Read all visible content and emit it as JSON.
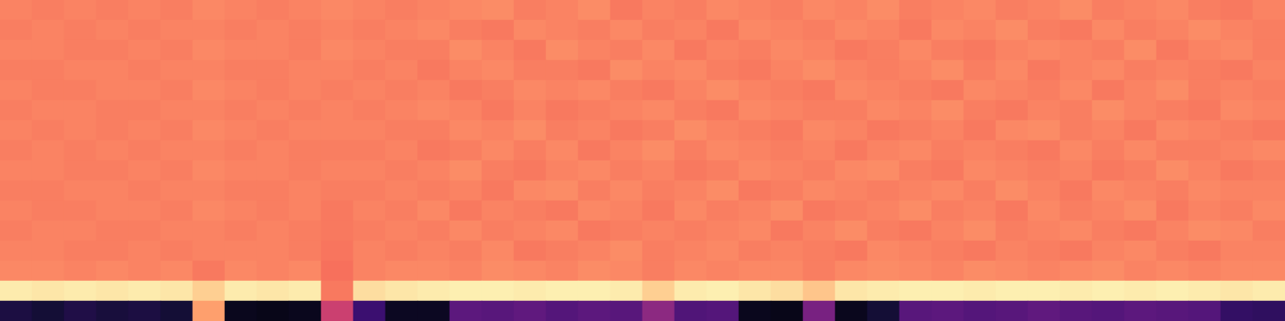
{
  "chart_data": {
    "type": "heatmap",
    "color": "magma",
    "tick_labels": false,
    "zlim": [
      0,
      1
    ],
    "cells": [
      [
        0.74,
        0.73,
        0.74,
        0.73,
        0.74,
        0.73,
        0.75,
        0.74,
        0.73,
        0.74,
        0.75,
        0.74,
        0.73,
        0.74,
        0.75,
        0.76,
        0.73,
        0.74,
        0.76,
        0.72,
        0.74,
        0.73,
        0.75,
        0.74,
        0.73,
        0.75,
        0.74,
        0.76,
        0.73,
        0.74,
        0.75,
        0.73,
        0.74,
        0.76,
        0.73,
        0.74,
        0.75,
        0.73,
        0.72,
        0.74
      ],
      [
        0.73,
        0.74,
        0.73,
        0.74,
        0.73,
        0.74,
        0.74,
        0.73,
        0.74,
        0.73,
        0.74,
        0.73,
        0.74,
        0.75,
        0.73,
        0.72,
        0.75,
        0.74,
        0.73,
        0.75,
        0.73,
        0.74,
        0.72,
        0.75,
        0.74,
        0.73,
        0.75,
        0.74,
        0.72,
        0.75,
        0.74,
        0.76,
        0.73,
        0.72,
        0.75,
        0.73,
        0.74,
        0.76,
        0.74,
        0.73
      ],
      [
        0.74,
        0.74,
        0.73,
        0.73,
        0.74,
        0.73,
        0.75,
        0.74,
        0.74,
        0.73,
        0.75,
        0.74,
        0.73,
        0.73,
        0.76,
        0.74,
        0.72,
        0.76,
        0.74,
        0.73,
        0.75,
        0.72,
        0.74,
        0.73,
        0.75,
        0.74,
        0.72,
        0.73,
        0.75,
        0.73,
        0.72,
        0.74,
        0.75,
        0.74,
        0.73,
        0.76,
        0.72,
        0.74,
        0.75,
        0.73
      ],
      [
        0.73,
        0.73,
        0.74,
        0.74,
        0.73,
        0.74,
        0.74,
        0.73,
        0.73,
        0.74,
        0.74,
        0.73,
        0.74,
        0.72,
        0.74,
        0.75,
        0.73,
        0.73,
        0.72,
        0.76,
        0.74,
        0.75,
        0.73,
        0.72,
        0.74,
        0.76,
        0.74,
        0.73,
        0.74,
        0.76,
        0.73,
        0.75,
        0.72,
        0.74,
        0.75,
        0.73,
        0.74,
        0.73,
        0.72,
        0.74
      ],
      [
        0.74,
        0.73,
        0.73,
        0.74,
        0.74,
        0.73,
        0.75,
        0.74,
        0.73,
        0.74,
        0.73,
        0.74,
        0.73,
        0.74,
        0.72,
        0.73,
        0.75,
        0.74,
        0.75,
        0.73,
        0.72,
        0.74,
        0.76,
        0.74,
        0.73,
        0.72,
        0.75,
        0.74,
        0.73,
        0.72,
        0.75,
        0.74,
        0.73,
        0.75,
        0.72,
        0.74,
        0.76,
        0.73,
        0.74,
        0.73
      ],
      [
        0.73,
        0.74,
        0.74,
        0.73,
        0.73,
        0.74,
        0.74,
        0.73,
        0.74,
        0.73,
        0.74,
        0.73,
        0.74,
        0.75,
        0.74,
        0.72,
        0.74,
        0.72,
        0.73,
        0.74,
        0.75,
        0.73,
        0.72,
        0.75,
        0.74,
        0.73,
        0.73,
        0.75,
        0.74,
        0.76,
        0.73,
        0.72,
        0.74,
        0.73,
        0.76,
        0.74,
        0.73,
        0.72,
        0.75,
        0.74
      ],
      [
        0.74,
        0.73,
        0.74,
        0.73,
        0.74,
        0.73,
        0.75,
        0.74,
        0.73,
        0.74,
        0.74,
        0.74,
        0.73,
        0.73,
        0.75,
        0.74,
        0.76,
        0.73,
        0.74,
        0.72,
        0.73,
        0.76,
        0.74,
        0.73,
        0.72,
        0.75,
        0.74,
        0.72,
        0.73,
        0.74,
        0.72,
        0.75,
        0.76,
        0.73,
        0.74,
        0.72,
        0.75,
        0.74,
        0.73,
        0.72
      ],
      [
        0.73,
        0.74,
        0.73,
        0.74,
        0.73,
        0.74,
        0.74,
        0.73,
        0.74,
        0.73,
        0.73,
        0.73,
        0.74,
        0.72,
        0.73,
        0.75,
        0.73,
        0.75,
        0.72,
        0.74,
        0.76,
        0.73,
        0.75,
        0.74,
        0.73,
        0.74,
        0.72,
        0.74,
        0.75,
        0.73,
        0.74,
        0.73,
        0.72,
        0.75,
        0.73,
        0.75,
        0.73,
        0.73,
        0.74,
        0.75
      ],
      [
        0.74,
        0.74,
        0.73,
        0.73,
        0.74,
        0.73,
        0.75,
        0.74,
        0.74,
        0.73,
        0.74,
        0.74,
        0.73,
        0.74,
        0.76,
        0.73,
        0.72,
        0.74,
        0.75,
        0.73,
        0.74,
        0.72,
        0.73,
        0.75,
        0.74,
        0.73,
        0.75,
        0.76,
        0.73,
        0.72,
        0.75,
        0.74,
        0.73,
        0.74,
        0.72,
        0.73,
        0.76,
        0.74,
        0.72,
        0.73
      ],
      [
        0.73,
        0.73,
        0.74,
        0.74,
        0.73,
        0.74,
        0.74,
        0.73,
        0.73,
        0.74,
        0.73,
        0.73,
        0.74,
        0.73,
        0.74,
        0.72,
        0.75,
        0.76,
        0.73,
        0.75,
        0.73,
        0.74,
        0.76,
        0.72,
        0.73,
        0.75,
        0.74,
        0.73,
        0.74,
        0.75,
        0.73,
        0.76,
        0.74,
        0.72,
        0.75,
        0.74,
        0.73,
        0.75,
        0.74,
        0.74
      ],
      [
        0.74,
        0.73,
        0.73,
        0.74,
        0.74,
        0.73,
        0.75,
        0.74,
        0.73,
        0.74,
        0.72,
        0.74,
        0.73,
        0.75,
        0.72,
        0.74,
        0.73,
        0.72,
        0.75,
        0.74,
        0.72,
        0.75,
        0.73,
        0.74,
        0.76,
        0.72,
        0.73,
        0.74,
        0.76,
        0.73,
        0.74,
        0.72,
        0.75,
        0.73,
        0.74,
        0.76,
        0.72,
        0.74,
        0.73,
        0.75
      ],
      [
        0.73,
        0.74,
        0.74,
        0.73,
        0.73,
        0.74,
        0.74,
        0.73,
        0.74,
        0.73,
        0.72,
        0.73,
        0.74,
        0.73,
        0.75,
        0.73,
        0.74,
        0.75,
        0.72,
        0.73,
        0.74,
        0.73,
        0.74,
        0.75,
        0.72,
        0.74,
        0.76,
        0.73,
        0.72,
        0.74,
        0.76,
        0.73,
        0.74,
        0.75,
        0.73,
        0.72,
        0.74,
        0.76,
        0.75,
        0.73
      ],
      [
        0.74,
        0.74,
        0.73,
        0.73,
        0.74,
        0.73,
        0.74,
        0.74,
        0.74,
        0.73,
        0.71,
        0.74,
        0.73,
        0.74,
        0.73,
        0.75,
        0.72,
        0.73,
        0.74,
        0.76,
        0.73,
        0.74,
        0.75,
        0.73,
        0.74,
        0.73,
        0.72,
        0.75,
        0.74,
        0.73,
        0.72,
        0.74,
        0.73,
        0.72,
        0.74,
        0.75,
        0.73,
        0.72,
        0.74,
        0.74
      ],
      [
        0.75,
        0.75,
        0.74,
        0.75,
        0.74,
        0.75,
        0.72,
        0.75,
        0.74,
        0.75,
        0.7,
        0.74,
        0.75,
        0.75,
        0.74,
        0.76,
        0.75,
        0.74,
        0.76,
        0.75,
        0.73,
        0.75,
        0.74,
        0.75,
        0.75,
        0.73,
        0.75,
        0.76,
        0.75,
        0.74,
        0.76,
        0.75,
        0.74,
        0.75,
        0.76,
        0.74,
        0.75,
        0.74,
        0.75,
        0.75
      ],
      [
        0.96,
        0.95,
        0.96,
        0.95,
        0.96,
        0.95,
        0.9,
        0.96,
        0.95,
        0.96,
        0.72,
        0.93,
        0.95,
        0.96,
        0.97,
        0.97,
        0.96,
        0.97,
        0.97,
        0.96,
        0.9,
        0.96,
        0.97,
        0.95,
        0.93,
        0.88,
        0.95,
        0.96,
        0.97,
        0.97,
        0.96,
        0.97,
        0.97,
        0.96,
        0.97,
        0.96,
        0.97,
        0.96,
        0.95,
        0.96
      ],
      [
        0.12,
        0.1,
        0.13,
        0.11,
        0.12,
        0.1,
        0.8,
        0.05,
        0.04,
        0.05,
        0.55,
        0.2,
        0.06,
        0.06,
        0.28,
        0.27,
        0.29,
        0.26,
        0.28,
        0.27,
        0.4,
        0.25,
        0.26,
        0.05,
        0.04,
        0.35,
        0.05,
        0.1,
        0.27,
        0.28,
        0.26,
        0.27,
        0.29,
        0.27,
        0.26,
        0.28,
        0.27,
        0.26,
        0.18,
        0.17
      ]
    ]
  }
}
